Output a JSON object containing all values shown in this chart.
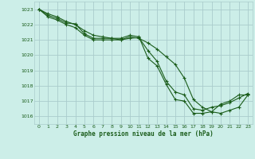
{
  "title": "Graphe pression niveau de la mer (hPa)",
  "background_color": "#cceee8",
  "grid_color": "#aacccc",
  "line_color": "#1a5c1a",
  "xlim": [
    -0.5,
    23.5
  ],
  "ylim": [
    1015.5,
    1023.5
  ],
  "yticks": [
    1016,
    1017,
    1018,
    1019,
    1020,
    1021,
    1022,
    1023
  ],
  "xticks": [
    0,
    1,
    2,
    3,
    4,
    5,
    6,
    7,
    8,
    9,
    10,
    11,
    12,
    13,
    14,
    15,
    16,
    17,
    18,
    19,
    20,
    21,
    22,
    23
  ],
  "series": [
    {
      "x": [
        0,
        1,
        2,
        3,
        4,
        5,
        6,
        7,
        8,
        9,
        10,
        11,
        12,
        13,
        14,
        15,
        16,
        17,
        18,
        19,
        20,
        21,
        22,
        23
      ],
      "y": [
        1023.0,
        1022.6,
        1022.4,
        1022.1,
        1022.05,
        1021.4,
        1021.1,
        1021.1,
        1021.1,
        1021.1,
        1021.3,
        1021.2,
        1019.8,
        1019.3,
        1018.1,
        1017.1,
        1017.0,
        1016.2,
        1016.2,
        1016.3,
        1016.8,
        1017.0,
        1017.4,
        1017.4
      ]
    },
    {
      "x": [
        0,
        1,
        2,
        3,
        4,
        5,
        6,
        7,
        8,
        9,
        10,
        11,
        12,
        13,
        14,
        15,
        16,
        17,
        18,
        19,
        20,
        21,
        22,
        23
      ],
      "y": [
        1023.0,
        1022.7,
        1022.5,
        1022.2,
        1022.0,
        1021.6,
        1021.3,
        1021.2,
        1021.1,
        1021.0,
        1021.2,
        1021.1,
        1020.8,
        1020.4,
        1019.9,
        1019.4,
        1018.5,
        1017.1,
        1016.6,
        1016.3,
        1016.2,
        1016.4,
        1016.6,
        1017.4
      ]
    },
    {
      "x": [
        0,
        1,
        2,
        3,
        4,
        5,
        6,
        7,
        8,
        9,
        10,
        11,
        12,
        13,
        14,
        15,
        16,
        17,
        18,
        19,
        20,
        21,
        22,
        23
      ],
      "y": [
        1023.0,
        1022.5,
        1022.3,
        1022.0,
        1021.8,
        1021.3,
        1021.0,
        1021.0,
        1021.0,
        1021.0,
        1021.1,
        1021.15,
        1020.3,
        1019.6,
        1018.3,
        1017.6,
        1017.4,
        1016.5,
        1016.4,
        1016.6,
        1016.7,
        1016.9,
        1017.2,
        1017.5
      ]
    }
  ]
}
